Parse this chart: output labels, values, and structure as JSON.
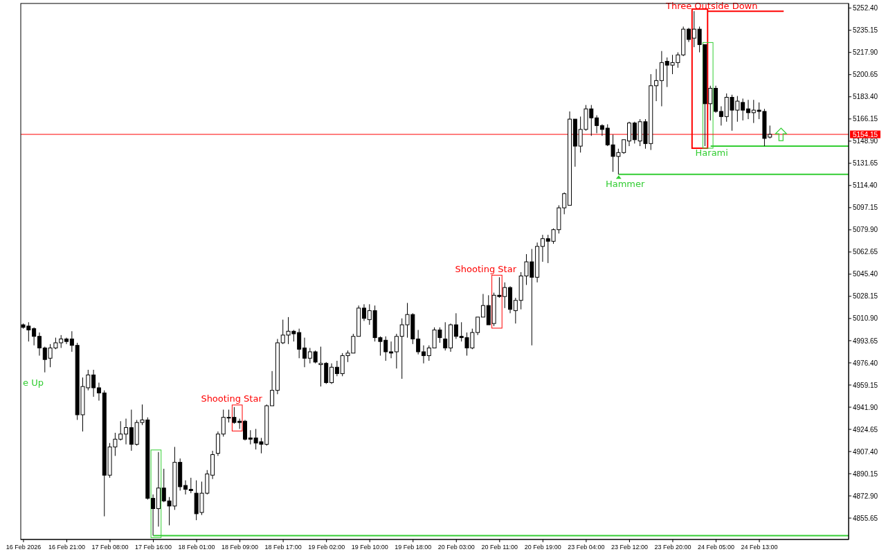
{
  "chart_data": {
    "type": "candlestick",
    "categories": [
      "16 Feb 2026",
      null,
      null,
      null,
      null,
      null,
      null,
      null,
      "16 Feb 21:00",
      null,
      null,
      null,
      null,
      null,
      null,
      null,
      "17 Feb 08:00",
      null,
      null,
      null,
      null,
      null,
      null,
      null,
      "17 Feb 16:00",
      null,
      null,
      null,
      null,
      null,
      null,
      null,
      "18 Feb 01:00",
      null,
      null,
      null,
      null,
      null,
      null,
      null,
      "18 Feb 09:00",
      null,
      null,
      null,
      null,
      null,
      null,
      null,
      "18 Feb 17:00",
      null,
      null,
      null,
      null,
      null,
      null,
      null,
      "19 Feb 02:00",
      null,
      null,
      null,
      null,
      null,
      null,
      null,
      "19 Feb 10:00",
      null,
      null,
      null,
      null,
      null,
      null,
      null,
      "19 Feb 18:00",
      null,
      null,
      null,
      null,
      null,
      null,
      null,
      "20 Feb 03:00",
      null,
      null,
      null,
      null,
      null,
      null,
      null,
      "20 Feb 11:00",
      null,
      null,
      null,
      null,
      null,
      null,
      null,
      "20 Feb 19:00",
      null,
      null,
      null,
      null,
      null,
      null,
      null,
      "23 Feb 04:00",
      null,
      null,
      null,
      null,
      null,
      null,
      null,
      "23 Feb 12:00",
      null,
      null,
      null,
      null,
      null,
      null,
      null,
      "23 Feb 20:00",
      null,
      null,
      null,
      null,
      null,
      null,
      null,
      "24 Feb 05:00",
      null,
      null,
      null,
      null,
      null,
      null,
      null,
      "24 Feb 13:00",
      null,
      null,
      null,
      null,
      null,
      null,
      null,
      null,
      null,
      null,
      null,
      null,
      null,
      null,
      null,
      null
    ],
    "ohlc": [
      [
        5006,
        5007,
        5003,
        5004
      ],
      [
        5005,
        5008,
        4993,
        5002
      ],
      [
        5003,
        5004,
        4990,
        4997
      ],
      [
        4997,
        5000,
        4982,
        4988
      ],
      [
        4988,
        4989,
        4969,
        4979
      ],
      [
        4980,
        4991,
        4973,
        4988
      ],
      [
        4988,
        4996,
        4987,
        4992
      ],
      [
        4992,
        4998,
        4988,
        4995
      ],
      [
        4995,
        4996,
        4991,
        4993
      ],
      [
        4995,
        5001,
        4985,
        4990
      ],
      [
        4990,
        4992,
        4932,
        4936
      ],
      [
        4936,
        4965,
        4923,
        4958
      ],
      [
        4957,
        4971,
        4955,
        4967
      ],
      [
        4967,
        4971,
        4950,
        4957
      ],
      [
        4957,
        4961,
        4947,
        4953
      ],
      [
        4953,
        4955,
        4857,
        4889
      ],
      [
        4889,
        4914,
        4887,
        4911
      ],
      [
        4911,
        4922,
        4904,
        4917
      ],
      [
        4917,
        4931,
        4916,
        4921
      ],
      [
        4921,
        4933,
        4913,
        4926
      ],
      [
        4926,
        4940,
        4908,
        4913
      ],
      [
        4913,
        4932,
        4912,
        4930
      ],
      [
        4930,
        4944,
        4928,
        4932
      ],
      [
        4932,
        4934,
        4870,
        4871
      ],
      [
        4871,
        4874,
        4842,
        4863
      ],
      [
        4863,
        4907,
        4849,
        4879
      ],
      [
        4879,
        4894,
        4868,
        4869
      ],
      [
        4869,
        4872,
        4850,
        4865
      ],
      [
        4865,
        4911,
        4862,
        4899
      ],
      [
        4899,
        4902,
        4877,
        4880
      ],
      [
        4881,
        4885,
        4874,
        4878
      ],
      [
        4878,
        4887,
        4875,
        4877
      ],
      [
        4875,
        4885,
        4854,
        4859
      ],
      [
        4860,
        4884,
        4858,
        4875
      ],
      [
        4875,
        4893,
        4874,
        4890
      ],
      [
        4889,
        4908,
        4886,
        4905
      ],
      [
        4906,
        4923,
        4904,
        4921
      ],
      [
        4921,
        4940,
        4919,
        4934
      ],
      [
        4934,
        4940,
        4930,
        4934
      ],
      [
        4934,
        4942,
        4929,
        4930
      ],
      [
        4931,
        4933,
        4925,
        4930
      ],
      [
        4931,
        4932,
        4916,
        4917
      ],
      [
        4918,
        4924,
        4913,
        4917
      ],
      [
        4918,
        4925,
        4909,
        4914
      ],
      [
        4915,
        4918,
        4906,
        4913
      ],
      [
        4913,
        4944,
        4912,
        4943
      ],
      [
        4943,
        4970,
        4943,
        4955
      ],
      [
        4955,
        4995,
        4952,
        4992
      ],
      [
        4992,
        5010,
        4991,
        4998
      ],
      [
        4998,
        5012,
        4991,
        5001
      ],
      [
        5001,
        5002,
        4993,
        4999
      ],
      [
        5000,
        5003,
        4980,
        4987
      ],
      [
        4988,
        4996,
        4973,
        4980
      ],
      [
        4980,
        4988,
        4976,
        4985
      ],
      [
        4985,
        4986,
        4976,
        4977
      ],
      [
        4975,
        4989,
        4958,
        4976
      ],
      [
        4976,
        4977,
        4960,
        4961
      ],
      [
        4961,
        4976,
        4960,
        4973
      ],
      [
        4973,
        4978,
        4966,
        4968
      ],
      [
        4968,
        4984,
        4966,
        4982
      ],
      [
        4982,
        4986,
        4977,
        4984
      ],
      [
        4984,
        4999,
        4984,
        4997
      ],
      [
        4997,
        5021,
        4997,
        5019
      ],
      [
        5019,
        5022,
        5009,
        5011
      ],
      [
        5010,
        5022,
        5006,
        5017
      ],
      [
        5017,
        5021,
        4993,
        4996
      ],
      [
        4996,
        4997,
        4982,
        4993
      ],
      [
        4994,
        4997,
        4978,
        4985
      ],
      [
        4985,
        4993,
        4980,
        4984
      ],
      [
        4985,
        4999,
        4972,
        4997
      ],
      [
        4997,
        5011,
        4964,
        5006
      ],
      [
        5006,
        5023,
        4996,
        5014
      ],
      [
        5014,
        5015,
        4991,
        4995
      ],
      [
        4995,
        5002,
        4983,
        4985
      ],
      [
        4985,
        4990,
        4976,
        4982
      ],
      [
        4982,
        4990,
        4978,
        4988
      ],
      [
        4988,
        5004,
        4988,
        5002
      ],
      [
        5002,
        5004,
        4992,
        4996
      ],
      [
        4995,
        5008,
        4986,
        4988
      ],
      [
        4988,
        5007,
        4985,
        5006
      ],
      [
        5006,
        5015,
        4995,
        4997
      ],
      [
        4997,
        5008,
        4993,
        4996
      ],
      [
        4996,
        5000,
        4982,
        4988
      ],
      [
        4988,
        5003,
        4987,
        5000
      ],
      [
        5000,
        5012,
        4998,
        5012
      ],
      [
        5012,
        5030,
        5012,
        5021
      ],
      [
        5021,
        5029,
        5006,
        5006
      ],
      [
        5007,
        5031,
        5005,
        5029
      ],
      [
        5029,
        5043,
        5027,
        5028
      ],
      [
        5028,
        5039,
        5019,
        5035
      ],
      [
        5035,
        5036,
        5015,
        5018
      ],
      [
        5017,
        5027,
        5007,
        5025
      ],
      [
        5025,
        5047,
        5018,
        5044
      ],
      [
        5044,
        5061,
        5037,
        5055
      ],
      [
        5055,
        5065,
        4990,
        5043
      ],
      [
        5043,
        5070,
        5039,
        5067
      ],
      [
        5067,
        5076,
        5055,
        5073
      ],
      [
        5073,
        5076,
        5054,
        5071
      ],
      [
        5071,
        5081,
        5069,
        5080
      ],
      [
        5080,
        5099,
        5077,
        5097
      ],
      [
        5097,
        5109,
        5092,
        5108
      ],
      [
        5099,
        5172,
        5099,
        5166
      ],
      [
        5166,
        5166,
        5129,
        5145
      ],
      [
        5145,
        5168,
        5140,
        5158
      ],
      [
        5158,
        5177,
        5157,
        5174
      ],
      [
        5174,
        5177,
        5153,
        5167
      ],
      [
        5167,
        5169,
        5155,
        5161
      ],
      [
        5161,
        5162,
        5153,
        5158
      ],
      [
        5159,
        5162,
        5145,
        5146
      ],
      [
        5146,
        5154,
        5125,
        5137
      ],
      [
        5137,
        5143,
        5123,
        5140
      ],
      [
        5140,
        5150,
        5139,
        5150
      ],
      [
        5149,
        5164,
        5145,
        5163
      ],
      [
        5163,
        5164,
        5147,
        5150
      ],
      [
        5149,
        5166,
        5145,
        5164
      ],
      [
        5164,
        5166,
        5143,
        5147
      ],
      [
        5147,
        5201,
        5142,
        5192
      ],
      [
        5192,
        5205,
        5180,
        5196
      ],
      [
        5196,
        5219,
        5176,
        5210
      ],
      [
        5211,
        5214,
        5191,
        5208
      ],
      [
        5208,
        5216,
        5201,
        5210
      ],
      [
        5210,
        5218,
        5206,
        5216
      ],
      [
        5216,
        5238,
        5215,
        5236
      ],
      [
        5236,
        5237,
        5226,
        5228
      ],
      [
        5229,
        5250,
        5222,
        5236
      ],
      [
        5236,
        5238,
        5218,
        5224
      ],
      [
        5224,
        5224,
        5145,
        5178
      ],
      [
        5178,
        5192,
        5165,
        5190
      ],
      [
        5190,
        5192,
        5171,
        5172
      ],
      [
        5172,
        5176,
        5161,
        5168
      ],
      [
        5168,
        5186,
        5164,
        5183
      ],
      [
        5183,
        5185,
        5157,
        5173
      ],
      [
        5173,
        5184,
        5164,
        5180
      ],
      [
        5179,
        5182,
        5165,
        5173
      ],
      [
        5174,
        5181,
        5166,
        5171
      ],
      [
        5171,
        5181,
        5163,
        5173
      ],
      [
        5173,
        5179,
        5166,
        5172
      ],
      [
        5172,
        5174,
        5145,
        5151
      ],
      [
        5152,
        5161,
        5151,
        5154.15
      ],
      null,
      null,
      null,
      null,
      null,
      null,
      null,
      null,
      null,
      null,
      null,
      null,
      null,
      null
    ],
    "ylim": [
      4839,
      5256
    ],
    "yticks": [
      {
        "value": 4855.65,
        "label": "4855.65"
      },
      {
        "value": 4872.9,
        "label": "4872.90"
      },
      {
        "value": 4890.15,
        "label": "4890.15"
      },
      {
        "value": 4907.4,
        "label": "4907.40"
      },
      {
        "value": 4924.65,
        "label": "4924.65"
      },
      {
        "value": 4941.9,
        "label": "4941.90"
      },
      {
        "value": 4959.15,
        "label": "4959.15"
      },
      {
        "value": 4976.4,
        "label": "4976.40"
      },
      {
        "value": 4993.65,
        "label": "4993.65"
      },
      {
        "value": 5010.9,
        "label": "5010.90"
      },
      {
        "value": 5028.15,
        "label": "5028.15"
      },
      {
        "value": 5045.4,
        "label": "5045.40"
      },
      {
        "value": 5062.65,
        "label": "5062.65"
      },
      {
        "value": 5079.9,
        "label": "5079.90"
      },
      {
        "value": 5097.15,
        "label": "5097.15"
      },
      {
        "value": 5114.4,
        "label": "5114.40"
      },
      {
        "value": 5131.65,
        "label": "5131.65"
      },
      {
        "value": 5148.9,
        "label": "5148.90"
      },
      {
        "value": 5166.15,
        "label": "5166.15"
      },
      {
        "value": 5183.4,
        "label": "5183.40"
      },
      {
        "value": 5200.65,
        "label": "5200.65"
      },
      {
        "value": 5217.9,
        "label": "5217.90"
      },
      {
        "value": 5235.15,
        "label": "5235.15"
      },
      {
        "value": 5252.4,
        "label": "5252.40"
      }
    ],
    "ref_lines": [
      {
        "axis": "y",
        "value": 5154.15,
        "label": "5154.15",
        "color": "#ff0000"
      },
      {
        "axis": "y",
        "value": 5250,
        "label": "Three Outside Down",
        "color": "#ff0000"
      },
      {
        "axis": "y",
        "value": 5145,
        "label": "Harami",
        "color": "#32cd32"
      },
      {
        "axis": "y",
        "value": 5123,
        "label": "Hammer",
        "color": "#32cd32"
      },
      {
        "axis": "y",
        "value": 4842,
        "color": "#32cd32"
      }
    ],
    "annotations": [
      "e Up",
      "Shooting Star",
      "Shooting Star"
    ]
  }
}
